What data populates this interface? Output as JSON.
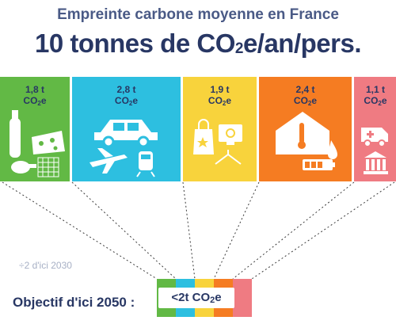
{
  "title": "Empreinte carbone moyenne en France",
  "headline": {
    "pre": "10 tonnes de CO",
    "sub": "2",
    "post": "e/an/pers."
  },
  "note": "÷2 d'ici 2030",
  "goal": {
    "label": "Objectif d'ici 2050 :",
    "value_pre": "<2t CO",
    "value_sub": "2",
    "value_post": "e"
  },
  "unit": {
    "pre": "CO",
    "sub": "2",
    "post": "e"
  },
  "colors": {
    "food": "#62b945",
    "transport": "#2dbfe0",
    "goods": "#f8d33c",
    "housing": "#f57c22",
    "services": "#ef7b82",
    "text": "#283764"
  },
  "chart_data": {
    "type": "bar",
    "orientation": "stacked-horizontal",
    "title": "Empreinte carbone moyenne en France",
    "total": 10,
    "unit": "t CO2e",
    "categories": [
      "food-icon",
      "transport-icon",
      "goods-icon",
      "housing-icon",
      "services-icon"
    ],
    "values": [
      1.8,
      2.8,
      1.9,
      2.4,
      1.1
    ],
    "labels": [
      "1,8 t",
      "2,8 t",
      "1,9 t",
      "2,4 t",
      "1,1 t"
    ],
    "colors": [
      "#62b945",
      "#2dbfe0",
      "#f8d33c",
      "#f57c22",
      "#ef7b82"
    ],
    "target_2050": "<2t CO2e"
  }
}
